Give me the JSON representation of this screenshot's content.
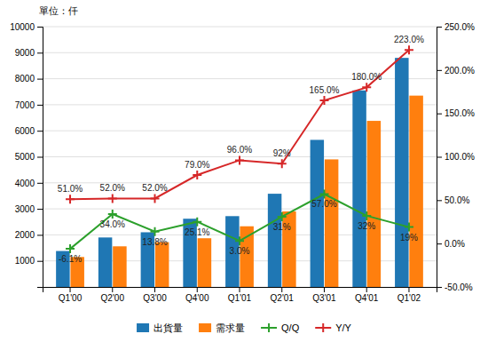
{
  "chart_data": {
    "type": "bar",
    "ylabel": "單位：仟",
    "categories": [
      "Q1'00",
      "Q2'00",
      "Q3'00",
      "Q4'00",
      "Q1'01",
      "Q2'01",
      "Q3'01",
      "Q4'01",
      "Q1'02"
    ],
    "series": [
      {
        "name": "出貨量",
        "type": "bar",
        "values": [
          1380,
          1900,
          2100,
          2620,
          2720,
          3580,
          5650,
          7550,
          8800
        ]
      },
      {
        "name": "需求量",
        "type": "bar",
        "values": [
          1150,
          1560,
          1720,
          1870,
          2330,
          2900,
          4900,
          6380,
          7350
        ]
      },
      {
        "name": "Q/Q",
        "type": "line",
        "axis": "y2",
        "marker": "plus",
        "data_labels": true,
        "values": [
          -6.1,
          34.0,
          13.8,
          25.1,
          3.0,
          31.0,
          57.0,
          32.0,
          19.0
        ],
        "value_labels": [
          "-6.1%",
          "34.0%",
          "13.8%",
          "25.1%",
          "3.0%",
          "31%",
          "57.0%",
          "32%",
          "19%"
        ]
      },
      {
        "name": "Y/Y",
        "type": "line",
        "axis": "y2",
        "marker": "plus",
        "data_labels": true,
        "values": [
          51.0,
          52.0,
          52.0,
          79.0,
          96.0,
          92.0,
          165.0,
          180.0,
          223.0
        ],
        "value_labels": [
          "51.0%",
          "52.0%",
          "52.0%",
          "79.0%",
          "96.0%",
          "92%",
          "165.0%",
          "180.0%",
          "223.0%"
        ]
      }
    ],
    "ylim": [
      0,
      10000
    ],
    "yticks": [
      1000,
      2000,
      3000,
      4000,
      5000,
      6000,
      7000,
      8000,
      9000,
      10000
    ],
    "y2lim": [
      -50,
      250
    ],
    "y2ticks": [
      {
        "value": -50,
        "label": "-50.0%"
      },
      {
        "value": 0,
        "label": "0.0%"
      },
      {
        "value": 50,
        "label": "50.0%"
      },
      {
        "value": 100,
        "label": "100.0%"
      },
      {
        "value": 150,
        "label": "150.0%"
      },
      {
        "value": 200,
        "label": "200.0%"
      },
      {
        "value": 250,
        "label": "250.0%"
      }
    ],
    "grid": true,
    "legend": "bottom"
  }
}
